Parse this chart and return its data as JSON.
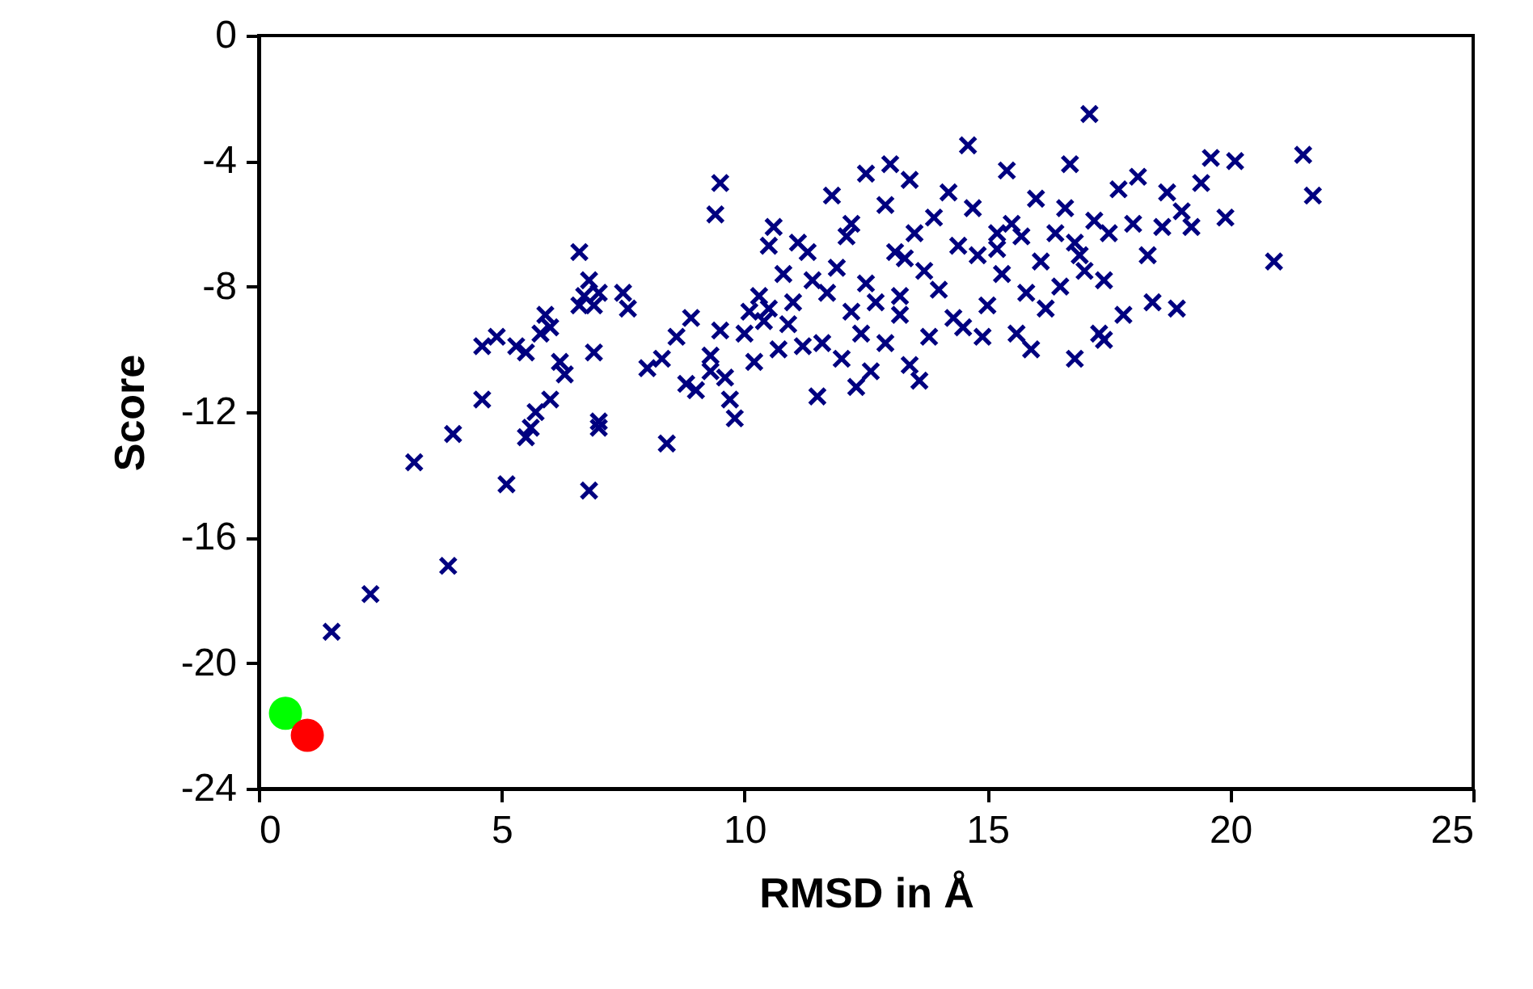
{
  "chart_data": {
    "type": "scatter",
    "xlabel": "RMSD in Å",
    "ylabel": "Score",
    "xlim": [
      0,
      25
    ],
    "xticks": [
      0,
      5,
      10,
      15,
      20,
      25
    ],
    "ylim": [
      -24,
      0
    ],
    "yticks": [
      -24,
      -20,
      -16,
      -12,
      -8,
      -4,
      0
    ],
    "grid": false,
    "series": [
      {
        "color": "#000080",
        "marker": "cross",
        "x": [
          1.5,
          2.3,
          3.9,
          3.2,
          4.0,
          5.1,
          6.8,
          4.6,
          5.5,
          5.6,
          5.7,
          6.0,
          6.3,
          6.2,
          4.6,
          4.9,
          5.3,
          5.5,
          5.8,
          6.0,
          5.9,
          6.6,
          6.7,
          6.9,
          7.0,
          6.8,
          6.6,
          6.9,
          7.0,
          7.0,
          7.5,
          7.6,
          8.0,
          8.4,
          8.3,
          8.6,
          8.8,
          9.0,
          8.9,
          9.3,
          9.5,
          9.4,
          9.5,
          9.8,
          9.7,
          9.6,
          10.0,
          10.1,
          10.3,
          10.5,
          10.6,
          10.5,
          10.8,
          10.9,
          10.7,
          11.0,
          11.3,
          11.1,
          11.5,
          11.6,
          11.7,
          11.9,
          12.0,
          11.8,
          12.1,
          12.2,
          12.3,
          12.4,
          12.5,
          12.5,
          12.6,
          12.7,
          12.9,
          13.0,
          13.1,
          13.2,
          13.3,
          13.4,
          13.5,
          13.6,
          13.8,
          13.7,
          13.9,
          14.0,
          14.2,
          14.3,
          14.4,
          14.6,
          14.7,
          14.8,
          14.9,
          15.0,
          15.2,
          15.3,
          15.4,
          15.5,
          15.6,
          15.7,
          15.8,
          15.9,
          16.0,
          16.1,
          16.2,
          16.4,
          16.5,
          16.6,
          16.7,
          16.8,
          16.8,
          17.0,
          17.1,
          17.2,
          17.3,
          17.4,
          17.5,
          17.7,
          17.8,
          18.0,
          18.1,
          18.3,
          18.4,
          18.6,
          18.7,
          18.9,
          19.0,
          19.2,
          19.4,
          19.6,
          19.9,
          20.1,
          20.9,
          21.5,
          21.7,
          9.3,
          10.2,
          11.2,
          12.9,
          13.4,
          14.5,
          16.9,
          17.4,
          15.2,
          12.2,
          11.4,
          10.4,
          13.2
        ],
        "values": [
          -19.0,
          -17.8,
          -16.9,
          -13.6,
          -12.7,
          -14.3,
          -14.5,
          -11.6,
          -12.8,
          -12.5,
          -12.0,
          -11.6,
          -10.8,
          -10.4,
          -9.9,
          -9.6,
          -9.9,
          -10.1,
          -9.5,
          -9.3,
          -8.9,
          -8.6,
          -8.3,
          -8.6,
          -8.2,
          -7.8,
          -6.9,
          -10.1,
          -12.3,
          -12.5,
          -8.2,
          -8.7,
          -10.6,
          -13.0,
          -10.3,
          -9.6,
          -11.1,
          -11.3,
          -9.0,
          -10.2,
          -9.4,
          -5.7,
          -4.7,
          -12.2,
          -11.6,
          -10.9,
          -9.5,
          -8.8,
          -8.3,
          -8.7,
          -6.1,
          -6.7,
          -7.6,
          -9.2,
          -10.0,
          -8.5,
          -6.9,
          -6.6,
          -11.5,
          -9.8,
          -8.2,
          -7.4,
          -10.3,
          -5.1,
          -6.4,
          -8.8,
          -11.2,
          -9.5,
          -7.9,
          -4.4,
          -10.7,
          -8.5,
          -5.4,
          -4.1,
          -6.9,
          -8.3,
          -7.1,
          -4.6,
          -6.3,
          -11.0,
          -9.6,
          -7.5,
          -5.8,
          -8.1,
          -5.0,
          -9.0,
          -6.7,
          -3.5,
          -5.5,
          -7.0,
          -9.6,
          -8.6,
          -6.8,
          -7.6,
          -4.3,
          -6.0,
          -9.5,
          -6.4,
          -8.2,
          -10.0,
          -5.2,
          -7.2,
          -8.7,
          -6.3,
          -8.0,
          -5.5,
          -4.1,
          -6.6,
          -10.3,
          -7.5,
          -2.5,
          -5.9,
          -9.5,
          -7.8,
          -6.3,
          -4.9,
          -8.9,
          -6.0,
          -4.5,
          -7.0,
          -8.5,
          -6.1,
          -5.0,
          -8.7,
          -5.6,
          -6.1,
          -4.7,
          -3.9,
          -5.8,
          -4.0,
          -7.2,
          -3.8,
          -5.1,
          -10.7,
          -10.4,
          -9.9,
          -9.8,
          -10.5,
          -9.3,
          -7.0,
          -9.7,
          -6.3,
          -6.0,
          -7.8,
          -9.1,
          -8.9
        ]
      },
      {
        "color": "#00ff00",
        "marker": "circle",
        "x": [
          0.55
        ],
        "values": [
          -21.6
        ]
      },
      {
        "color": "#ff0000",
        "marker": "circle",
        "x": [
          1.0
        ],
        "values": [
          -22.3
        ]
      }
    ]
  }
}
